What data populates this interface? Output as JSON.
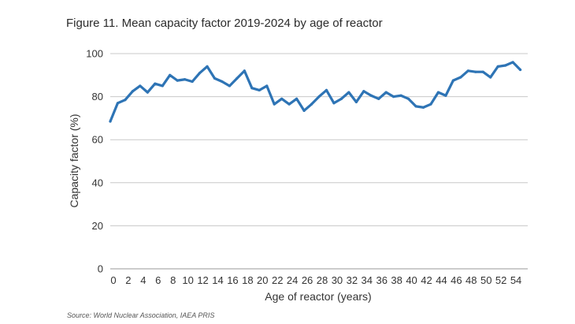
{
  "title": "Figure 11. Mean capacity factor 2019-2024 by age of reactor",
  "source": "Source: World Nuclear Association, IAEA PRIS",
  "chart_data": {
    "type": "line",
    "title": "Figure 11. Mean capacity factor 2019-2024 by age of reactor",
    "xlabel": "Age of reactor (years)",
    "ylabel": "Capacity factor (%)",
    "xlim": [
      0,
      56
    ],
    "ylim": [
      0,
      100
    ],
    "x_ticks": [
      0,
      2,
      4,
      6,
      8,
      10,
      12,
      14,
      16,
      18,
      20,
      22,
      24,
      26,
      28,
      30,
      32,
      34,
      36,
      38,
      40,
      42,
      44,
      46,
      48,
      50,
      52,
      54
    ],
    "y_ticks": [
      0,
      20,
      40,
      60,
      80,
      100
    ],
    "grid": "horizontal",
    "line_color": "#2e74b5",
    "series": [
      {
        "x": [
          0,
          1,
          2,
          3,
          4,
          5,
          6,
          7,
          8,
          9,
          10,
          11,
          12,
          13,
          14,
          15,
          16,
          17,
          18,
          19,
          20,
          21,
          22,
          23,
          24,
          25,
          26,
          27,
          28,
          29,
          30,
          31,
          32,
          33,
          34,
          35,
          36,
          37,
          38,
          39,
          40,
          41,
          42,
          43,
          44,
          45,
          46,
          47,
          48,
          49,
          50,
          51,
          52,
          53,
          54,
          55
        ],
        "values": [
          68.5,
          77,
          78.5,
          82.5,
          85,
          82,
          86,
          85,
          90,
          87.5,
          88,
          87,
          91,
          94,
          88.5,
          87,
          85,
          88.5,
          92,
          84,
          83,
          85,
          76.5,
          79,
          76.5,
          79,
          73.5,
          76.5,
          80,
          83,
          77,
          79,
          82,
          77.5,
          82.5,
          80.5,
          79,
          82,
          80,
          80.5,
          79,
          75.5,
          75,
          76.5,
          82,
          80.5,
          87.5,
          89,
          92,
          91.5,
          91.5,
          89,
          94,
          94.5,
          96,
          92.5
        ]
      }
    ]
  }
}
